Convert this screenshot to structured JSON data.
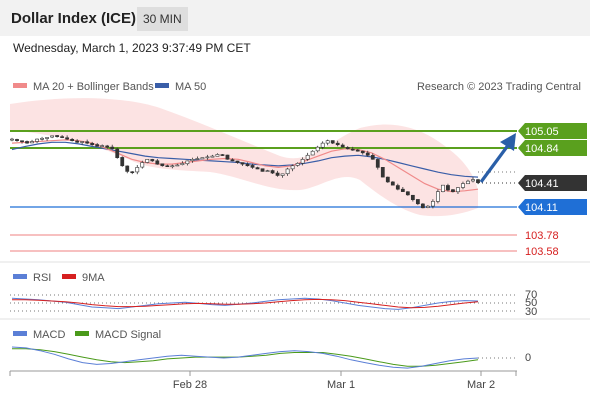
{
  "header": {
    "title": "Dollar Index (ICE)",
    "timeframe": "30 MIN"
  },
  "timestamp": "Wednesday, March 1, 2023 9:37:49 PM CET",
  "price_panel": {
    "legend": [
      {
        "label": "MA 20 + Bollinger Bands",
        "color": "#f08a8a"
      },
      {
        "label": "MA 50",
        "color": "#3a5ea8"
      }
    ],
    "credit": "Research © 2023 Trading Central",
    "current_price": "104.41",
    "levels": [
      {
        "value": "105.05",
        "kind": "resistance",
        "color": "#5aa01e",
        "tagged": true
      },
      {
        "value": "104.84",
        "kind": "resistance",
        "color": "#5aa01e",
        "tagged": true
      },
      {
        "value": "104.11",
        "kind": "pivot",
        "color": "#1f6fd6",
        "tagged": true
      },
      {
        "value": "103.78",
        "kind": "support",
        "color": "#f29a9a",
        "tagged": false
      },
      {
        "value": "103.58",
        "kind": "support",
        "color": "#f29a9a",
        "tagged": false
      }
    ]
  },
  "rsi_panel": {
    "legend": [
      {
        "label": "RSI",
        "color": "#5b7fd6"
      },
      {
        "label": "9MA",
        "color": "#d62020"
      }
    ],
    "levels": [
      "70",
      "50",
      "30"
    ]
  },
  "macd_panel": {
    "legend": [
      {
        "label": "MACD",
        "color": "#5b7fd6"
      },
      {
        "label": "MACD Signal",
        "color": "#4a9a1a"
      }
    ],
    "zero_label": "0"
  },
  "x_axis": {
    "labels": [
      "Feb 28",
      "Mar 1",
      "Mar 2"
    ]
  },
  "chart_data": {
    "type": "candlestick",
    "title": "Dollar Index (ICE)",
    "timeframe": "30 MIN",
    "y_range_visible": [
      103.5,
      105.2
    ],
    "close_series_approx": [
      104.95,
      104.93,
      104.92,
      104.9,
      104.92,
      104.95,
      104.96,
      104.97,
      104.99,
      104.98,
      104.97,
      104.95,
      104.93,
      104.91,
      104.92,
      104.9,
      104.88,
      104.86,
      104.87,
      104.85,
      104.83,
      104.72,
      104.62,
      104.55,
      104.54,
      104.6,
      104.66,
      104.7,
      104.68,
      104.64,
      104.62,
      104.61,
      104.62,
      104.63,
      104.65,
      104.68,
      104.7,
      104.71,
      104.72,
      104.73,
      104.74,
      104.76,
      104.75,
      104.7,
      104.68,
      104.66,
      104.64,
      104.62,
      104.6,
      104.58,
      104.55,
      104.56,
      104.53,
      104.5,
      104.52,
      104.58,
      104.62,
      104.65,
      104.7,
      104.75,
      104.8,
      104.85,
      104.9,
      104.93,
      104.9,
      104.88,
      104.85,
      104.83,
      104.82,
      104.8,
      104.78,
      104.75,
      104.7,
      104.6,
      104.48,
      104.42,
      104.38,
      104.33,
      104.3,
      104.26,
      104.2,
      104.15,
      104.1,
      104.12,
      104.18,
      104.3,
      104.38,
      104.32,
      104.3,
      104.35,
      104.4,
      104.43,
      104.45,
      104.41
    ],
    "ma20_approx": [
      104.9,
      104.91,
      104.92,
      104.93,
      104.94,
      104.93,
      104.9,
      104.84,
      104.77,
      104.7,
      104.66,
      104.64,
      104.64,
      104.66,
      104.68,
      104.7,
      104.71,
      104.7,
      104.66,
      104.62,
      104.6,
      104.62,
      104.68,
      104.74,
      104.8,
      104.83,
      104.82,
      104.78,
      104.7,
      104.6,
      104.5,
      104.4,
      104.33,
      104.3,
      104.31,
      104.33
    ],
    "ma50_approx": [
      104.82,
      104.86,
      104.89,
      104.91,
      104.91,
      104.89,
      104.86,
      104.83,
      104.8,
      104.77,
      104.74,
      104.72,
      104.71,
      104.7,
      104.69,
      104.68,
      104.67,
      104.66,
      104.64,
      104.63,
      104.62,
      104.63,
      104.65,
      104.68,
      104.72,
      104.74,
      104.75,
      104.73,
      104.7,
      104.66,
      104.62,
      104.58,
      104.54,
      104.51,
      104.49,
      104.48
    ],
    "rsi_approx": [
      62,
      60,
      58,
      55,
      52,
      46,
      40,
      38,
      36,
      40,
      44,
      48,
      50,
      52,
      49,
      46,
      44,
      47,
      50,
      54,
      58,
      60,
      62,
      60,
      56,
      50,
      44,
      40,
      36,
      34,
      38,
      44,
      50,
      54,
      56,
      55
    ],
    "rsi_ma_approx": [
      58,
      58,
      57,
      55,
      53,
      50,
      46,
      43,
      41,
      41,
      42,
      44,
      46,
      48,
      49,
      48,
      47,
      47,
      48,
      50,
      53,
      56,
      58,
      59,
      58,
      56,
      52,
      48,
      44,
      40,
      38,
      39,
      42,
      46,
      50,
      53
    ],
    "macd_approx": [
      0.12,
      0.11,
      0.08,
      0.04,
      -0.01,
      -0.05,
      -0.07,
      -0.06,
      -0.04,
      -0.02,
      0.0,
      0.02,
      0.03,
      0.02,
      0.01,
      0.0,
      0.01,
      0.03,
      0.05,
      0.07,
      0.08,
      0.07,
      0.05,
      0.02,
      -0.02,
      -0.05,
      -0.08,
      -0.1,
      -0.11,
      -0.09,
      -0.06,
      -0.03,
      -0.01,
      0.0
    ],
    "macd_signal_approx": [
      0.1,
      0.1,
      0.09,
      0.07,
      0.04,
      0.01,
      -0.02,
      -0.04,
      -0.05,
      -0.04,
      -0.03,
      -0.01,
      0.0,
      0.01,
      0.01,
      0.01,
      0.01,
      0.02,
      0.03,
      0.05,
      0.06,
      0.06,
      0.06,
      0.04,
      0.02,
      -0.01,
      -0.04,
      -0.07,
      -0.09,
      -0.09,
      -0.08,
      -0.06,
      -0.04,
      -0.02
    ],
    "rsi_levels": [
      70,
      50,
      30
    ],
    "projection": {
      "direction": "up",
      "from": 104.41,
      "to": 105.05
    }
  }
}
